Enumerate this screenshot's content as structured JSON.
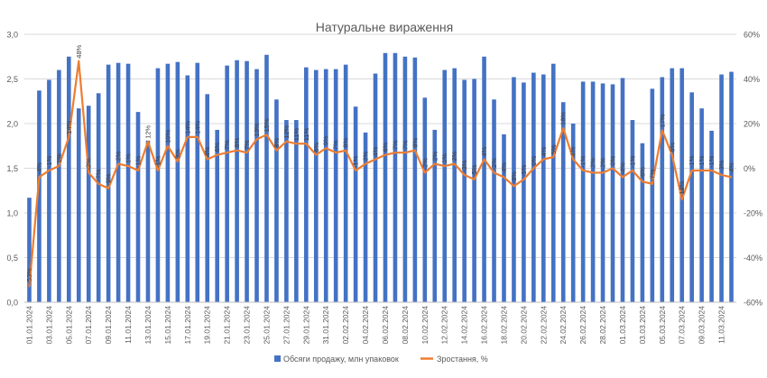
{
  "chart_data": {
    "type": "bar",
    "title": "Натуральне вираження",
    "legend_position": "bottom",
    "grid": true,
    "colors": {
      "bar": "#4472c4",
      "line": "#ed7d31",
      "grid": "#d9d9d9",
      "text": "#595959",
      "title": "#595959"
    },
    "y_left": {
      "min": 0,
      "max": 3,
      "step": 0.5,
      "ticks": [
        "0,0",
        "0,5",
        "1,0",
        "1,5",
        "2,0",
        "2,5",
        "3,0"
      ]
    },
    "y_right": {
      "min": -60,
      "max": 60,
      "step": 20,
      "ticks": [
        "-60%",
        "-40%",
        "-20%",
        "0%",
        "20%",
        "40%",
        "60%"
      ]
    },
    "x_tick_labels": [
      "01.01.2024",
      "03.01.2024",
      "05.01.2024",
      "07.01.2024",
      "09.01.2024",
      "11.01.2024",
      "13.01.2024",
      "15.01.2024",
      "17.01.2024",
      "19.01.2024",
      "21.01.2024",
      "23.01.2024",
      "25.01.2024",
      "27.01.2024",
      "29.01.2024",
      "31.01.2024",
      "02.02.2024",
      "04.02.2024",
      "06.02.2024",
      "08.02.2024",
      "10.02.2024",
      "12.02.2024",
      "14.02.2024",
      "16.02.2024",
      "18.02.2024",
      "20.02.2024",
      "22.02.2024",
      "24.02.2024",
      "26.02.2024",
      "28.02.2024",
      "01.03.2024",
      "03.03.2024",
      "05.03.2024",
      "07.03.2024",
      "09.03.2024",
      "11.03.2024"
    ],
    "series": [
      {
        "name": "Обсяги продажу, млн упаковок",
        "type": "bar",
        "axis": "left",
        "values": [
          1.17,
          2.37,
          2.49,
          2.6,
          2.75,
          2.17,
          2.2,
          2.34,
          2.66,
          2.68,
          2.67,
          2.13,
          1.81,
          2.62,
          2.67,
          2.69,
          2.54,
          2.68,
          2.33,
          1.93,
          2.65,
          2.71,
          2.7,
          2.61,
          2.77,
          2.27,
          2.04,
          2.04,
          2.63,
          2.6,
          2.61,
          2.61,
          2.66,
          2.19,
          1.9,
          2.56,
          2.79,
          2.79,
          2.75,
          2.74,
          2.29,
          1.93,
          2.6,
          2.62,
          2.49,
          2.5,
          2.75,
          2.27,
          1.88,
          2.52,
          2.46,
          2.57,
          2.55,
          2.67,
          2.24,
          2.0,
          2.47,
          2.47,
          2.45,
          2.44,
          2.51,
          2.04,
          1.78,
          2.39,
          2.52,
          2.62,
          2.62,
          2.35,
          2.17,
          1.92,
          2.55,
          2.58
        ]
      },
      {
        "name": "Зростання, %",
        "type": "line",
        "axis": "right",
        "values": [
          -53,
          -4,
          -1,
          1,
          14,
          48,
          -2,
          -7,
          -9,
          2,
          1,
          -1,
          12,
          -1,
          10,
          3,
          14,
          14,
          4,
          6,
          7,
          8,
          7,
          13,
          15,
          8,
          12,
          11,
          11,
          6,
          9,
          7,
          8,
          -1,
          2,
          4,
          6,
          7,
          7,
          8,
          -2,
          2,
          1,
          2,
          -3,
          -5,
          4,
          -2,
          -4,
          -8,
          -5,
          0,
          4,
          5,
          18,
          4,
          -1,
          -2,
          -2,
          0,
          -4,
          -1,
          -6,
          -7,
          17,
          6,
          -14,
          -1,
          -1,
          -1,
          -3,
          -4
        ],
        "labels": [
          "-53%",
          "-4%",
          "-1%",
          "1%",
          "14%",
          "48%",
          "-2%",
          "-7%",
          "-9%",
          "2%",
          "1%",
          "-1%",
          "12%",
          "-1%",
          "10%",
          "3%",
          "14%",
          "14%",
          "4%",
          "6%",
          "7%",
          "8%",
          "7%",
          "13%",
          "15%",
          "8%",
          "12%",
          "11%",
          "11%",
          "6%",
          "9%",
          "7%",
          "8%",
          "-1%",
          "2%",
          "4%",
          "6%",
          "7%",
          "7%",
          "8%",
          "-2%",
          "2%",
          "1%",
          "2%",
          "-3%",
          "-5%",
          "4%",
          "-2%",
          "-4%",
          "-8%",
          "-5%",
          "0%",
          "4%",
          "5%",
          "18%",
          "4%",
          "-1%",
          "-2%",
          "-2%",
          "0%",
          "-4%",
          "-1%",
          "-6%",
          "-7%",
          "17%",
          "6%",
          "-14%",
          "-1%",
          "-1%",
          "-1%",
          "-3%",
          "-4%"
        ]
      }
    ]
  }
}
